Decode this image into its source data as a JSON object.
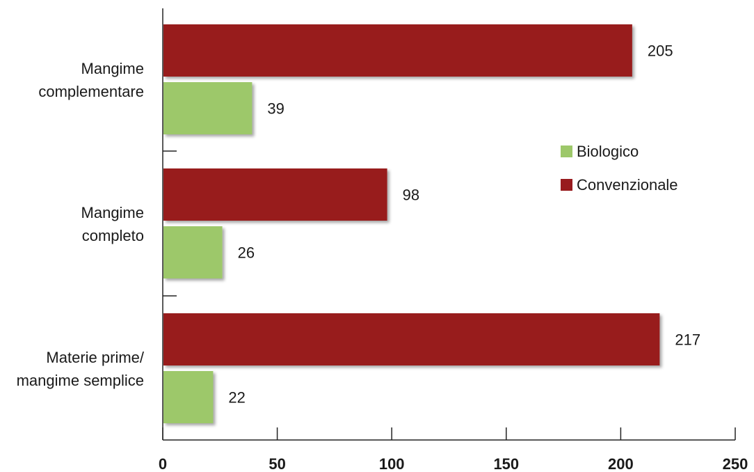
{
  "chart_data": {
    "type": "bar",
    "orientation": "horizontal",
    "categories": [
      [
        "Mangime",
        "complementare"
      ],
      [
        "Mangime",
        "completo"
      ],
      [
        "Materie prime/",
        "mangime semplice"
      ]
    ],
    "series": [
      {
        "name": "Convenzionale",
        "color": "#981b1e",
        "values": [
          205,
          98,
          217
        ]
      },
      {
        "name": "Biologico",
        "color": "#9dc86a",
        "values": [
          39,
          26,
          22
        ]
      }
    ],
    "xlim": [
      0,
      250
    ],
    "xticks": [
      "0",
      "50",
      "100",
      "150",
      "200",
      "250"
    ],
    "legend": {
      "placement": "right",
      "entries": [
        {
          "label": "Biologico",
          "color": "#9dc86a"
        },
        {
          "label": "Convenzionale",
          "color": "#981b1e"
        }
      ]
    },
    "grid": false,
    "title": "",
    "xlabel": "",
    "ylabel": ""
  }
}
